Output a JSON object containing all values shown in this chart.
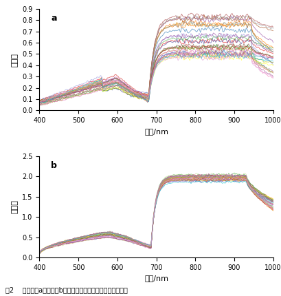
{
  "subplot_a": {
    "label": "a",
    "xlabel": "波长/nm",
    "ylabel": "反射率",
    "xlim": [
      400,
      1000
    ],
    "ylim": [
      0,
      0.9
    ],
    "yticks": [
      0.0,
      0.1,
      0.2,
      0.3,
      0.4,
      0.5,
      0.6,
      0.7,
      0.8,
      0.9
    ],
    "xticks": [
      400,
      500,
      600,
      700,
      800,
      900,
      1000
    ],
    "n_curves": 30
  },
  "subplot_b": {
    "label": "b",
    "xlabel": "波长/nm",
    "ylabel": "反射率",
    "xlim": [
      400,
      1000
    ],
    "ylim": [
      0,
      2.5
    ],
    "yticks": [
      0.0,
      0.5,
      1.0,
      1.5,
      2.0,
      2.5
    ],
    "xticks": [
      400,
      500,
      600,
      700,
      800,
      900,
      1000
    ],
    "n_curves": 30
  },
  "caption": "图2    校正前（a）、后（b）油茶果半径方向像元亮度均值曲线",
  "background_color": "#ffffff",
  "line_alpha": 0.7,
  "line_width": 0.6
}
